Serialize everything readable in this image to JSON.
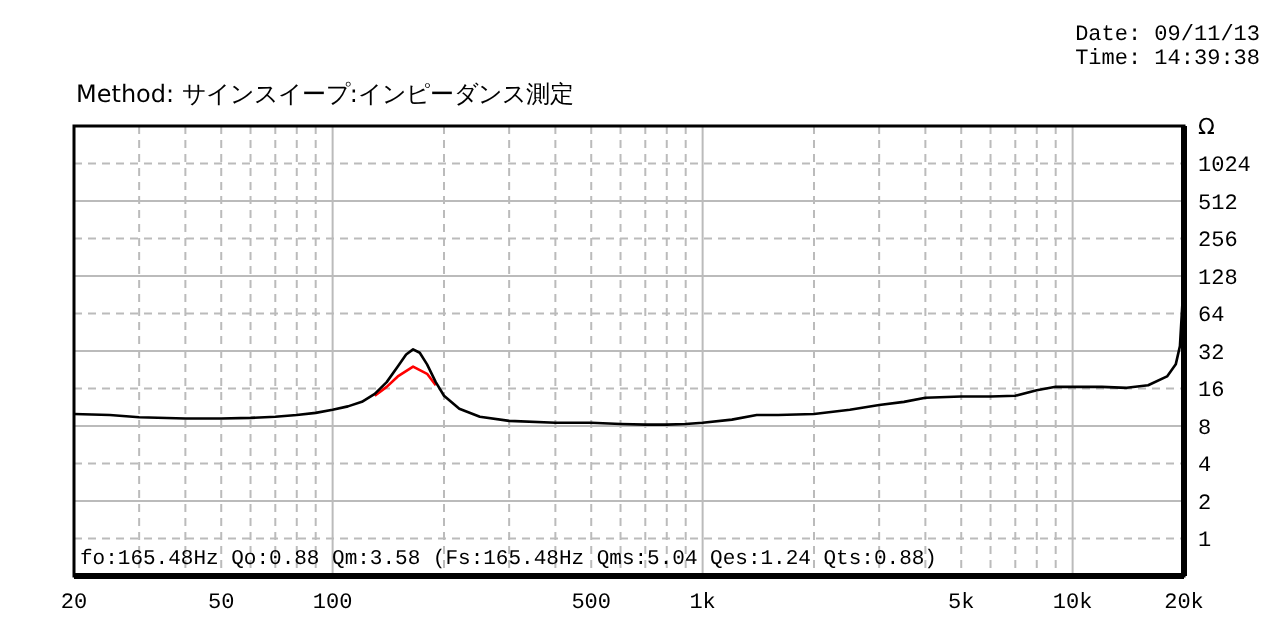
{
  "chart_data": {
    "type": "line",
    "title": "Method:  サインスイープ:インピーダンス測定",
    "ylabel": "Ω",
    "annotations": [
      "Date: 09/11/13",
      "Time: 14:39:38",
      "fo:165.48Hz  Qo:0.88 Qm:3.58 (Fs:165.48Hz  Qms:5.04 Qes:1.24 Qts:0.88)"
    ],
    "log": "xy",
    "grid": true,
    "marker": "none",
    "line_style": "solid",
    "xlim": [
      20,
      20000
    ],
    "ylim": [
      0.5,
      2048
    ],
    "xticks": [
      20,
      {
        "value": 30,
        "label": null
      },
      {
        "value": 40,
        "label": null
      },
      50,
      {
        "value": 60,
        "label": null
      },
      {
        "value": 70,
        "label": null
      },
      {
        "value": 80,
        "label": null
      },
      {
        "value": 90,
        "label": null
      },
      100,
      {
        "value": 200,
        "label": null
      },
      {
        "value": 300,
        "label": null
      },
      {
        "value": 400,
        "label": null
      },
      500,
      {
        "value": 600,
        "label": null
      },
      {
        "value": 700,
        "label": null
      },
      {
        "value": 800,
        "label": null
      },
      {
        "value": 900,
        "label": null
      },
      {
        "value": 1000,
        "label": "1k"
      },
      {
        "value": 2000,
        "label": null
      },
      {
        "value": 3000,
        "label": null
      },
      {
        "value": 4000,
        "label": null
      },
      {
        "value": 5000,
        "label": "5k"
      },
      {
        "value": 6000,
        "label": null
      },
      {
        "value": 7000,
        "label": null
      },
      {
        "value": 8000,
        "label": null
      },
      {
        "value": 9000,
        "label": null
      },
      {
        "value": 10000,
        "label": "10k"
      },
      {
        "value": 20000,
        "label": "20k"
      }
    ],
    "yticks": [
      1,
      2,
      4,
      8,
      16,
      32,
      64,
      128,
      256,
      512,
      1024
    ],
    "series": [
      {
        "color": "#ff0000",
        "x": [
          130,
          140,
          150,
          165,
          180,
          190
        ],
        "values": [
          14,
          16.5,
          20,
          24,
          21,
          17
        ]
      },
      {
        "color": "#000000",
        "x": [
          20,
          25,
          30,
          40,
          50,
          60,
          70,
          80,
          90,
          100,
          110,
          120,
          130,
          140,
          150,
          158,
          165,
          172,
          180,
          190,
          200,
          220,
          250,
          300,
          400,
          500,
          600,
          700,
          800,
          900,
          1000,
          1200,
          1400,
          1600,
          2000,
          2500,
          3000,
          3500,
          4000,
          5000,
          6000,
          7000,
          8000,
          9000,
          12000,
          14000,
          16000,
          18000,
          19000,
          19500,
          20000
        ],
        "values": [
          10,
          9.8,
          9.4,
          9.2,
          9.2,
          9.3,
          9.5,
          9.8,
          10.2,
          10.8,
          11.5,
          12.5,
          14.5,
          18,
          24,
          30,
          33,
          31,
          25,
          18,
          14,
          11,
          9.5,
          8.8,
          8.5,
          8.5,
          8.3,
          8.2,
          8.2,
          8.3,
          8.5,
          9,
          9.8,
          9.8,
          10,
          10.8,
          11.8,
          12.5,
          13.5,
          13.8,
          13.8,
          14,
          15.5,
          16.5,
          16.5,
          16.2,
          17,
          20,
          25,
          35,
          128
        ]
      }
    ]
  }
}
